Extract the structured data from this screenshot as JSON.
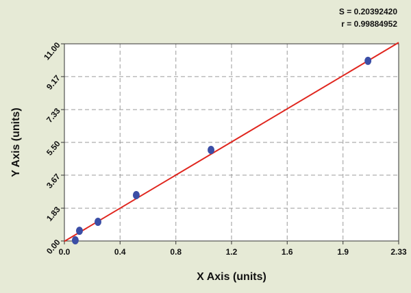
{
  "chart_data": {
    "type": "scatter",
    "x_label": "X Axis (units)",
    "y_label": "Y Axis (units)",
    "annotations": [
      "S = 0.20392420",
      "r = 0.99884952"
    ],
    "x": [
      0.076,
      0.105,
      0.234,
      0.501,
      1.022,
      2.116
    ],
    "values": [
      0.04,
      0.57,
      1.07,
      2.56,
      5.08,
      10.05
    ],
    "color": "#3b4ea6",
    "fit": {
      "x": [
        0,
        2.33
      ],
      "y": [
        -0.02,
        11.07
      ],
      "color": "#e0261e"
    },
    "xlim": [
      0,
      2.33
    ],
    "ylim": [
      0,
      11
    ],
    "xticks": [
      {
        "value": 0,
        "label": "0.0"
      },
      {
        "value": 0.388,
        "label": "0.4"
      },
      {
        "value": 0.777,
        "label": "0.8"
      },
      {
        "value": 1.165,
        "label": "1.2"
      },
      {
        "value": 1.553,
        "label": "1.6"
      },
      {
        "value": 1.942,
        "label": "1.9"
      },
      2.33
    ],
    "yticks": [
      {
        "value": 0,
        "label": "0.00"
      },
      1.83,
      3.67,
      {
        "value": 5.5,
        "label": "5.50"
      },
      7.33,
      9.17,
      {
        "value": 11,
        "label": "11.00"
      }
    ],
    "grid": true
  }
}
